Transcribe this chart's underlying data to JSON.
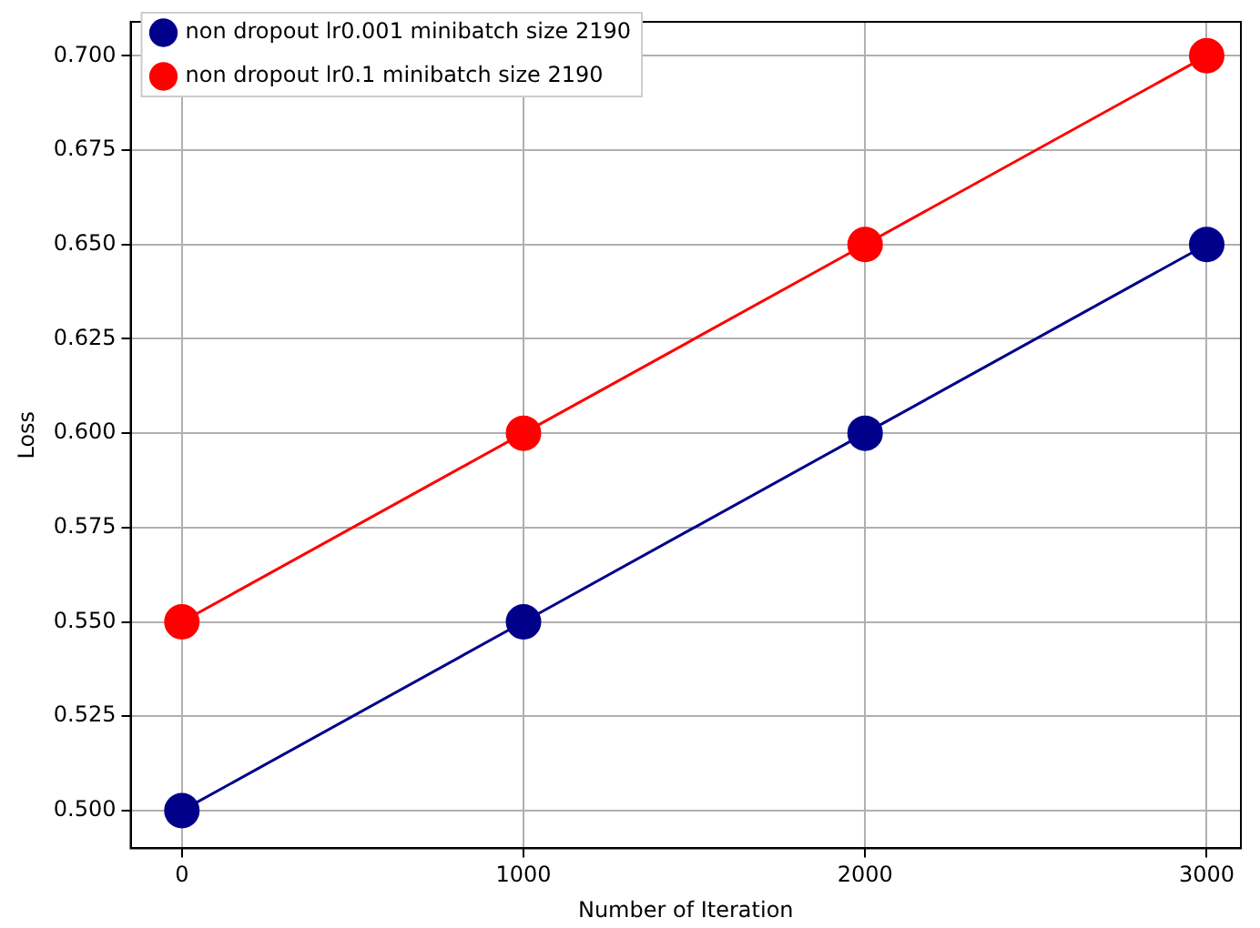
{
  "chart_data": {
    "type": "line",
    "xlabel": "Number of Iteration",
    "ylabel": "Loss",
    "x": [
      0,
      1000,
      2000,
      3000
    ],
    "series": [
      {
        "name": "non dropout lr0.001 minibatch size 2190",
        "color": "#00008b",
        "values": [
          0.5,
          0.55,
          0.6,
          0.65
        ]
      },
      {
        "name": "non dropout lr0.1 minibatch size 2190",
        "color": "#ff0000",
        "values": [
          0.55,
          0.6,
          0.65,
          0.7
        ]
      }
    ],
    "xlim": [
      -150,
      3100
    ],
    "xticks": [
      0,
      1000,
      2000,
      3000
    ],
    "ylim": [
      0.49,
      0.709
    ],
    "yticks": [
      {
        "value": 0.5,
        "label": "0.500"
      },
      {
        "value": 0.525,
        "label": "0.525"
      },
      {
        "value": 0.55,
        "label": "0.550"
      },
      {
        "value": 0.575,
        "label": "0.575"
      },
      {
        "value": 0.6,
        "label": "0.600"
      },
      {
        "value": 0.625,
        "label": "0.625"
      },
      {
        "value": 0.65,
        "label": "0.650"
      },
      {
        "value": 0.675,
        "label": "0.675"
      },
      {
        "value": 0.7,
        "label": "0.700"
      }
    ],
    "grid": true,
    "legend": "top left",
    "marker": "circle",
    "line_style": "solid"
  }
}
